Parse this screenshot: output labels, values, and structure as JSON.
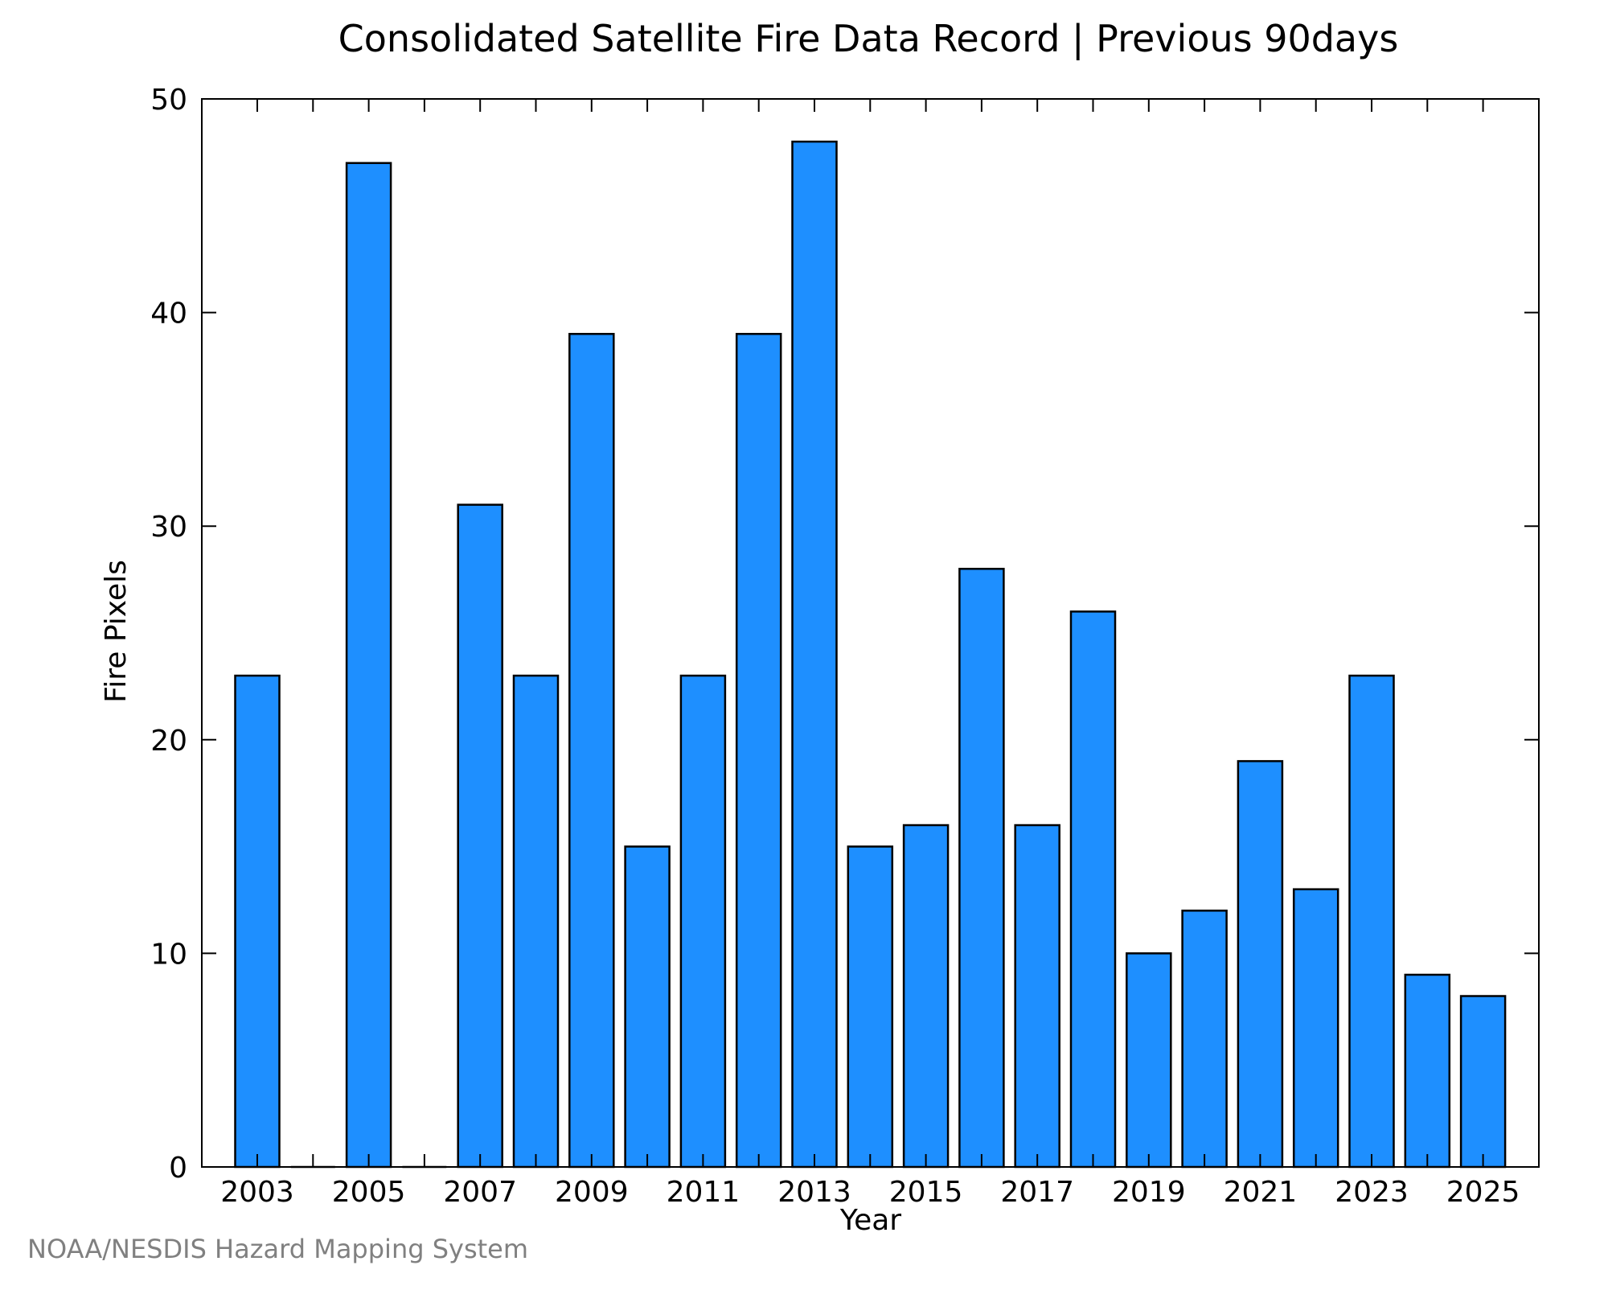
{
  "chart_data": {
    "type": "bar",
    "title": "Consolidated Satellite Fire Data Record | Previous 90days",
    "xlabel": "Year",
    "ylabel": "Fire Pixels",
    "categories": [
      "2003",
      "2004",
      "2005",
      "2006",
      "2007",
      "2008",
      "2009",
      "2010",
      "2011",
      "2012",
      "2013",
      "2014",
      "2015",
      "2016",
      "2017",
      "2018",
      "2019",
      "2020",
      "2021",
      "2022",
      "2023",
      "2024",
      "2025"
    ],
    "values": [
      23,
      0,
      47,
      0,
      31,
      23,
      39,
      15,
      23,
      39,
      48,
      15,
      16,
      28,
      16,
      26,
      10,
      12,
      19,
      13,
      23,
      9,
      8
    ],
    "ylim": [
      0,
      50
    ],
    "yticks": [
      0,
      10,
      20,
      30,
      40,
      50
    ],
    "xtick_labels": [
      "2003",
      "2005",
      "2007",
      "2009",
      "2011",
      "2013",
      "2015",
      "2017",
      "2019",
      "2021",
      "2023",
      "2025"
    ],
    "bar_color": "#1e8fff",
    "edge_color": "#000000",
    "grid": false,
    "legend": "none"
  },
  "footer": {
    "credit": "NOAA/NESDIS Hazard Mapping System"
  }
}
